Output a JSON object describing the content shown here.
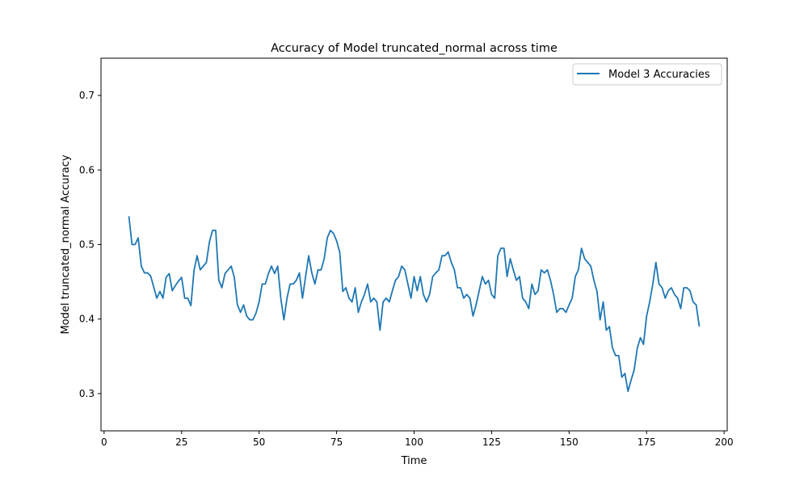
{
  "chart_data": {
    "type": "line",
    "title": "Accuracy of Model truncated_normal across time",
    "xlabel": "Time",
    "ylabel": "Model truncated_normal Accuracy",
    "xlim": [
      -1,
      201
    ],
    "ylim": [
      0.25,
      0.75
    ],
    "xticks": [
      0,
      25,
      50,
      75,
      100,
      125,
      150,
      175,
      200
    ],
    "yticks": [
      0.3,
      0.4,
      0.5,
      0.6,
      0.7
    ],
    "xtick_labels": [
      "0",
      "25",
      "50",
      "75",
      "100",
      "125",
      "150",
      "175",
      "200"
    ],
    "ytick_labels": [
      "0.3",
      "0.4",
      "0.5",
      "0.6",
      "0.7"
    ],
    "grid": false,
    "legend_position": "top-right",
    "colors": {
      "series": "#1f77b4"
    },
    "series": [
      {
        "name": "Model 3 Accuracies",
        "x": [
          8,
          9,
          10,
          11,
          12,
          13,
          14,
          15,
          16,
          17,
          18,
          19,
          20,
          21,
          22,
          23,
          24,
          25,
          26,
          27,
          28,
          29,
          30,
          31,
          32,
          33,
          34,
          35,
          36,
          37,
          38,
          39,
          40,
          41,
          42,
          43,
          44,
          45,
          46,
          47,
          48,
          49,
          50,
          51,
          52,
          53,
          54,
          55,
          56,
          57,
          58,
          59,
          60,
          61,
          62,
          63,
          64,
          65,
          66,
          67,
          68,
          69,
          70,
          71,
          72,
          73,
          74,
          75,
          76,
          77,
          78,
          79,
          80,
          81,
          82,
          83,
          84,
          85,
          86,
          87,
          88,
          89,
          90,
          91,
          92,
          93,
          94,
          95,
          96,
          97,
          98,
          99,
          100,
          101,
          102,
          103,
          104,
          105,
          106,
          107,
          108,
          109,
          110,
          111,
          112,
          113,
          114,
          115,
          116,
          117,
          118,
          119,
          120,
          121,
          122,
          123,
          124,
          125,
          126,
          127,
          128,
          129,
          130,
          131,
          132,
          133,
          134,
          135,
          136,
          137,
          138,
          139,
          140,
          141,
          142,
          143,
          144,
          145,
          146,
          147,
          148,
          149,
          150,
          151,
          152,
          153,
          154,
          155,
          156,
          157,
          158,
          159,
          160,
          161,
          162,
          163,
          164,
          165,
          166,
          167,
          168,
          169,
          170,
          171,
          172,
          173,
          174,
          175,
          176,
          177,
          178,
          179,
          180,
          181,
          182,
          183,
          184,
          185,
          186,
          187,
          188,
          189,
          190,
          191,
          192
        ],
        "values": [
          0.538,
          0.5,
          0.5,
          0.509,
          0.471,
          0.462,
          0.462,
          0.458,
          0.443,
          0.428,
          0.437,
          0.428,
          0.456,
          0.461,
          0.438,
          0.445,
          0.451,
          0.456,
          0.428,
          0.428,
          0.418,
          0.465,
          0.485,
          0.466,
          0.471,
          0.476,
          0.504,
          0.519,
          0.519,
          0.452,
          0.442,
          0.461,
          0.466,
          0.471,
          0.456,
          0.419,
          0.409,
          0.419,
          0.404,
          0.399,
          0.399,
          0.408,
          0.423,
          0.447,
          0.447,
          0.461,
          0.471,
          0.461,
          0.471,
          0.428,
          0.399,
          0.428,
          0.447,
          0.447,
          0.452,
          0.462,
          0.428,
          0.457,
          0.485,
          0.462,
          0.447,
          0.466,
          0.466,
          0.481,
          0.509,
          0.519,
          0.515,
          0.505,
          0.49,
          0.437,
          0.442,
          0.428,
          0.423,
          0.442,
          0.409,
          0.423,
          0.433,
          0.447,
          0.423,
          0.428,
          0.423,
          0.385,
          0.423,
          0.428,
          0.423,
          0.438,
          0.452,
          0.457,
          0.471,
          0.466,
          0.447,
          0.428,
          0.457,
          0.438,
          0.457,
          0.433,
          0.423,
          0.433,
          0.457,
          0.462,
          0.466,
          0.485,
          0.485,
          0.49,
          0.476,
          0.466,
          0.442,
          0.442,
          0.428,
          0.433,
          0.428,
          0.404,
          0.419,
          0.438,
          0.457,
          0.447,
          0.452,
          0.433,
          0.428,
          0.485,
          0.495,
          0.495,
          0.457,
          0.481,
          0.466,
          0.452,
          0.457,
          0.428,
          0.423,
          0.414,
          0.447,
          0.433,
          0.438,
          0.466,
          0.462,
          0.466,
          0.452,
          0.433,
          0.409,
          0.414,
          0.414,
          0.409,
          0.419,
          0.428,
          0.457,
          0.466,
          0.495,
          0.481,
          0.476,
          0.471,
          0.452,
          0.437,
          0.399,
          0.423,
          0.385,
          0.39,
          0.361,
          0.351,
          0.351,
          0.322,
          0.327,
          0.303,
          0.318,
          0.332,
          0.361,
          0.375,
          0.366,
          0.404,
          0.423,
          0.447,
          0.476,
          0.447,
          0.442,
          0.428,
          0.438,
          0.442,
          0.433,
          0.428,
          0.414,
          0.442,
          0.442,
          0.438,
          0.423,
          0.419,
          0.39
        ]
      }
    ]
  }
}
